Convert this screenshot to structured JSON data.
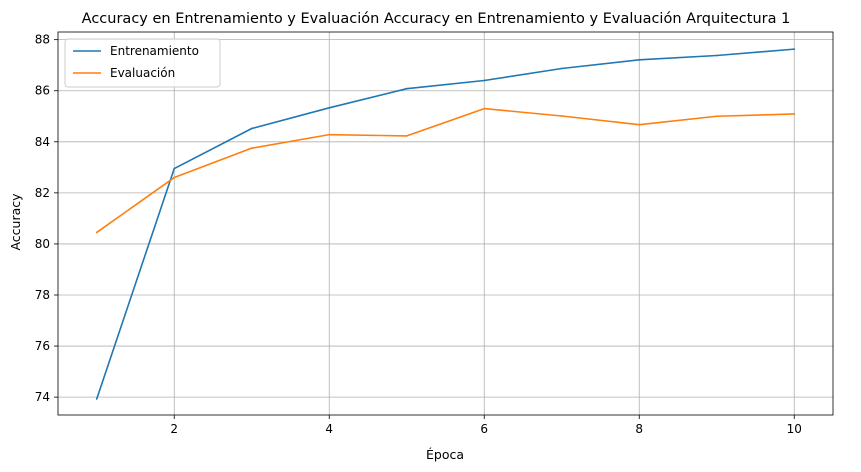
{
  "chart_data": {
    "type": "line",
    "title": "Accuracy en Entrenamiento y Evaluación Accuracy en Entrenamiento y Evaluación Arquitectura 1",
    "xlabel": "Época",
    "ylabel": "Accuracy",
    "xlim": [
      0.5,
      10.5
    ],
    "ylim": [
      73.3,
      88.3
    ],
    "xticks": [
      2,
      4,
      6,
      8,
      10
    ],
    "yticks": [
      74,
      76,
      78,
      80,
      82,
      84,
      86,
      88
    ],
    "grid": true,
    "legend_position": "top-left",
    "x": [
      1,
      2,
      3,
      4,
      5,
      6,
      7,
      8,
      9,
      10
    ],
    "series": [
      {
        "name": "Entrenamiento",
        "color": "#1f77b4",
        "values": [
          73.93,
          82.95,
          84.52,
          85.33,
          86.08,
          86.4,
          86.87,
          87.21,
          87.38,
          87.63
        ]
      },
      {
        "name": "Evaluación",
        "color": "#ff7f0e",
        "values": [
          80.45,
          82.6,
          83.75,
          84.28,
          84.23,
          85.3,
          85.01,
          84.67,
          85.0,
          85.09
        ]
      }
    ]
  }
}
